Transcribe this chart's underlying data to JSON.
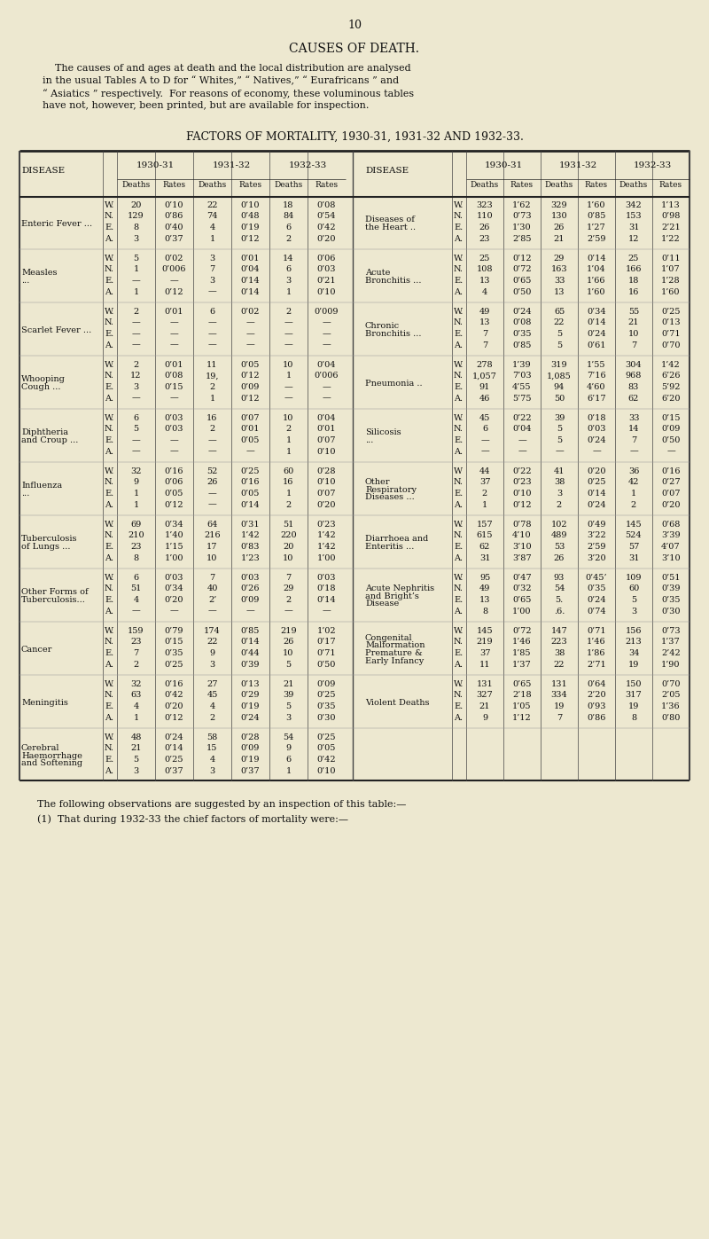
{
  "page_number": "10",
  "title": "CAUSES OF DEATH.",
  "intro_text": [
    "    The causes of and ages at death and the local distribution are analysed",
    "in the usual Tables A to D for “ Whites,” “ Natives,” “ Eurafricans ” and",
    "“ Asiatics ” respectively.  For reasons of economy, these voluminous tables",
    "have not, however, been printed, but are available for inspection."
  ],
  "table_title": "FACTORS OF MORTALITY, 1930-31, 1931-32 AND 1932-33.",
  "bg_color": "#ede8d0",
  "text_color": "#111111",
  "footer_lines": [
    "The following observations are suggested by an inspection of this table:—",
    "(1)  That during 1932-33 the chief factors of mortality were:—"
  ],
  "diseases_left": [
    {
      "name": "Enteric Fever ...",
      "name_lines": [
        "Enteric Fever ..."
      ],
      "rows": [
        [
          "W.",
          "20",
          "0’10",
          "22",
          "0’10",
          "18",
          "0’08"
        ],
        [
          "N.",
          "129",
          "0’86",
          "74",
          "0’48",
          "84",
          "0’54"
        ],
        [
          "E.",
          "8",
          "0’40",
          "4",
          "0’19",
          "6",
          "0’42"
        ],
        [
          "A.",
          "3",
          "0’37",
          "1",
          "0’12",
          "2",
          "0’20"
        ]
      ]
    },
    {
      "name": "Measles",
      "name_lines": [
        "Measles",
        "..."
      ],
      "rows": [
        [
          "W.",
          "5",
          "0’02",
          "3",
          "0’01",
          "14",
          "0’06"
        ],
        [
          "N.",
          "1",
          "0’006",
          "7",
          "0’04",
          "6",
          "0’03"
        ],
        [
          "E.",
          "—",
          "—",
          "3",
          "0’14",
          "3",
          "0’21"
        ],
        [
          "A.",
          "1",
          "0’12",
          "—",
          "0’14",
          "1",
          "0’10"
        ]
      ]
    },
    {
      "name": "Scarlet Fever ...",
      "name_lines": [
        "Scarlet Fever ..."
      ],
      "rows": [
        [
          "W.",
          "2",
          "0’01",
          "6",
          "0’02",
          "2",
          "0’009"
        ],
        [
          "N.",
          "—",
          "—",
          "—",
          "—",
          "—",
          "—"
        ],
        [
          "E.",
          "—",
          "—",
          "—",
          "—",
          "—",
          "—"
        ],
        [
          "A.",
          "—",
          "—",
          "—",
          "—",
          "—",
          "—"
        ]
      ]
    },
    {
      "name": "Whooping\nCough ...",
      "name_lines": [
        "Whooping",
        "Cough ..."
      ],
      "rows": [
        [
          "W.",
          "2",
          "0’01",
          "11",
          "0’05",
          "10",
          "0’04"
        ],
        [
          "N.",
          "12",
          "0’08",
          "19,",
          "0’12",
          "1",
          "0’006"
        ],
        [
          "E.",
          "3",
          "0’15",
          "2",
          "0’09",
          "—",
          "—"
        ],
        [
          "A.",
          "—",
          "—",
          "1",
          "0’12",
          "—",
          "—"
        ]
      ]
    },
    {
      "name": "Diphtheria\nand Croup ...",
      "name_lines": [
        "Diphtheria",
        "and Croup ..."
      ],
      "rows": [
        [
          "W.",
          "6",
          "0’03",
          "16",
          "0’07",
          "10",
          "0’04"
        ],
        [
          "N.",
          "5",
          "0’03",
          "2",
          "0’01",
          "2",
          "0’01"
        ],
        [
          "E.",
          "—",
          "—",
          "—",
          "0’05",
          "1",
          "0’07"
        ],
        [
          "A.",
          "—",
          "—",
          "—",
          "—",
          "1",
          "0’10"
        ]
      ]
    },
    {
      "name": "Influenza",
      "name_lines": [
        "Influenza",
        "..."
      ],
      "rows": [
        [
          "W.",
          "32",
          "0’16",
          "52",
          "0’25",
          "60",
          "0’28"
        ],
        [
          "N.",
          "9",
          "0’06",
          "26",
          "0’16",
          "16",
          "0’10"
        ],
        [
          "E.",
          "1",
          "0’05",
          "—",
          "0’05",
          "1",
          "0’07"
        ],
        [
          "A.",
          "1",
          "0’12",
          "—",
          "0’14",
          "2",
          "0’20"
        ]
      ]
    },
    {
      "name": "Tuberculosis\nof Lungs ...",
      "name_lines": [
        "Tuberculosis",
        "of Lungs ..."
      ],
      "rows": [
        [
          "W.",
          "69",
          "0’34",
          "64",
          "0’31",
          "51",
          "0’23"
        ],
        [
          "N.",
          "210",
          "1’40",
          "216",
          "1’42",
          "220",
          "1’42"
        ],
        [
          "E.",
          "23",
          "1’15",
          "17",
          "0’83",
          "20",
          "1’42"
        ],
        [
          "A.",
          "8",
          "1’00",
          "10",
          "1’23",
          "10",
          "1’00"
        ]
      ]
    },
    {
      "name": "Other Forms of\nTuberculosis...",
      "name_lines": [
        "Other Forms of",
        "Tuberculosis..."
      ],
      "rows": [
        [
          "W.",
          "6",
          "0’03",
          "7",
          "0’03",
          "7",
          "0’03"
        ],
        [
          "N.",
          "51",
          "0’34",
          "40",
          "0’26",
          "29",
          "0’18"
        ],
        [
          "E.",
          "4",
          "0’20",
          "2’",
          "0’09",
          "2",
          "0’14"
        ],
        [
          "A.",
          "—",
          "—",
          "—",
          "—",
          "—",
          "—"
        ]
      ]
    },
    {
      "name": "Cancer",
      "name_lines": [
        "Cancer"
      ],
      "rows": [
        [
          "W.",
          "159",
          "0’79",
          "174",
          "0’85",
          "219",
          "1’02"
        ],
        [
          "N.",
          "23",
          "0’15",
          "22",
          "0’14",
          "26",
          "0’17"
        ],
        [
          "E.",
          "7",
          "0’35",
          "9",
          "0’44",
          "10",
          "0’71"
        ],
        [
          "A.",
          "2",
          "0’25",
          "3",
          "0’39",
          "5",
          "0’50"
        ]
      ]
    },
    {
      "name": "Meningitis",
      "name_lines": [
        "Meningitis"
      ],
      "rows": [
        [
          "W.",
          "32",
          "0’16",
          "27",
          "0’13",
          "21",
          "0’09"
        ],
        [
          "N.",
          "63",
          "0’42",
          "45",
          "0’29",
          "39",
          "0’25"
        ],
        [
          "E.",
          "4",
          "0’20",
          "4",
          "0’19",
          "5",
          "0’35"
        ],
        [
          "A.",
          "1",
          "0’12",
          "2",
          "0’24",
          "3",
          "0’30"
        ]
      ]
    },
    {
      "name": "Cerebral\nHaemorrhage\nand Softening",
      "name_lines": [
        "Cerebral",
        "Haemorrhage",
        "and Softening"
      ],
      "rows": [
        [
          "W.",
          "48",
          "0’24",
          "58",
          "0’28",
          "54",
          "0’25"
        ],
        [
          "N.",
          "21",
          "0’14",
          "15",
          "0’09",
          "9",
          "0’05"
        ],
        [
          "E.",
          "5",
          "0’25",
          "4",
          "0’19",
          "6",
          "0’42"
        ],
        [
          "A.",
          "3",
          "0’37",
          "3",
          "0’37",
          "1",
          "0’10"
        ]
      ]
    }
  ],
  "diseases_right": [
    {
      "name": "Diseases of\nthe Heart ..",
      "name_lines": [
        "Diseases of",
        "the Heart .."
      ],
      "rows": [
        [
          "W.",
          "323",
          "1’62",
          "329",
          "1’60",
          "342",
          "1’13"
        ],
        [
          "N.",
          "110",
          "0’73",
          "130",
          "0’85",
          "153",
          "0’98"
        ],
        [
          "E.",
          "26",
          "1’30",
          "26",
          "1’27",
          "31",
          "2’21"
        ],
        [
          "A.",
          "23",
          "2’85",
          "21",
          "2’59",
          "12",
          "1’22"
        ]
      ]
    },
    {
      "name": "Acute\nBronchitis ...",
      "name_lines": [
        "Acute",
        "Bronchitis ..."
      ],
      "rows": [
        [
          "W.",
          "25",
          "0’12",
          "29",
          "0’14",
          "25",
          "0’11"
        ],
        [
          "N.",
          "108",
          "0’72",
          "163",
          "1’04",
          "166",
          "1’07"
        ],
        [
          "E.",
          "13",
          "0’65",
          "33",
          "1’66",
          "18",
          "1’28"
        ],
        [
          "A.",
          "4",
          "0’50",
          "13",
          "1’60",
          "16",
          "1’60"
        ]
      ]
    },
    {
      "name": "Chronic\nBronchitis ...",
      "name_lines": [
        "Chronic",
        "Bronchitis ..."
      ],
      "rows": [
        [
          "W.",
          "49",
          "0’24",
          "65",
          "0’34",
          "55",
          "0’25"
        ],
        [
          "N.",
          "13",
          "0’08",
          "22",
          "0’14",
          "21",
          "0’13"
        ],
        [
          "E.",
          "7",
          "0’35",
          "5",
          "0’24",
          "10",
          "0’71"
        ],
        [
          "A.",
          "7",
          "0’85",
          "5",
          "0’61",
          "7",
          "0’70"
        ]
      ]
    },
    {
      "name": "Pneumonia ..",
      "name_lines": [
        "Pneumonia .."
      ],
      "rows": [
        [
          "W.",
          "278",
          "1’39",
          "319",
          "1’55",
          "304",
          "1’42"
        ],
        [
          "N.",
          "1,057",
          "7’03",
          "1,085",
          "7’16",
          "968",
          "6’26"
        ],
        [
          "E.",
          "91",
          "4’55",
          "94",
          "4’60",
          "83",
          "5’92"
        ],
        [
          "A.",
          "46",
          "5’75",
          "50",
          "6’17",
          "62",
          "6’20"
        ]
      ]
    },
    {
      "name": "Silicosis",
      "name_lines": [
        "Silicosis",
        "..."
      ],
      "rows": [
        [
          "W.",
          "45",
          "0’22",
          "39",
          "0’18",
          "33",
          "0’15"
        ],
        [
          "N.",
          "6",
          "0’04",
          "5",
          "0’03",
          "14",
          "0’09"
        ],
        [
          "E.",
          "—",
          "—",
          "5",
          "0’24",
          "7",
          "0’50"
        ],
        [
          "A.",
          "—",
          "—",
          "—",
          "—",
          "—",
          "—"
        ]
      ]
    },
    {
      "name": "Other\nRespiratory\nDiseases ...",
      "name_lines": [
        "Other",
        "Respiratory",
        "Diseases ..."
      ],
      "rows": [
        [
          "W",
          "44",
          "0’22",
          "41",
          "0’20",
          "36",
          "0’16"
        ],
        [
          "N.",
          "37",
          "0’23",
          "38",
          "0’25",
          "42",
          "0’27"
        ],
        [
          "E.",
          "2",
          "0’10",
          "3",
          "0’14",
          "1",
          "0’07"
        ],
        [
          "A.",
          "1",
          "0’12",
          "2",
          "0’24",
          "2",
          "0’20"
        ]
      ]
    },
    {
      "name": "Diarrhoea and\nEnteritis ...",
      "name_lines": [
        "Diarrhoea and",
        "Enteritis ..."
      ],
      "rows": [
        [
          "W.",
          "157",
          "0’78",
          "102",
          "0’49",
          "145",
          "0’68"
        ],
        [
          "N.",
          "615",
          "4’10",
          "489",
          "3’22",
          "524",
          "3’39"
        ],
        [
          "E.",
          "62",
          "3’10",
          "53",
          "2’59",
          "57",
          "4’07"
        ],
        [
          "A.",
          "31",
          "3’87",
          "26",
          "3’20",
          "31",
          "3’10"
        ]
      ]
    },
    {
      "name": "Acute Nephritis\nand Bright's\nDisease",
      "name_lines": [
        "Acute Nephritis",
        "and Bright’s",
        "Disease"
      ],
      "rows": [
        [
          "W.",
          "95",
          "0’47",
          "93",
          "0’45’",
          "109",
          "0’51"
        ],
        [
          "N.",
          "49",
          "0’32",
          "54",
          "0’35",
          "60",
          "0’39"
        ],
        [
          "E.",
          "13",
          "0’65",
          "5.",
          "0’24",
          "5",
          "0’35"
        ],
        [
          "A.",
          "8",
          "1’00",
          ".6.",
          "0’74",
          "3",
          "0’30"
        ]
      ]
    },
    {
      "name": "Congenital\nMalformation\nPremature &\nEarly Infancy",
      "name_lines": [
        "Congenital",
        "Malformation",
        "Premature &",
        "Early Infancy"
      ],
      "rows": [
        [
          "W.",
          "145",
          "0’72",
          "147",
          "0’71",
          "156",
          "0’73"
        ],
        [
          "N.",
          "219",
          "1’46",
          "223",
          "1’46",
          "213",
          "1’37"
        ],
        [
          "E.",
          "37",
          "1’85",
          "38",
          "1’86",
          "34",
          "2’42"
        ],
        [
          "A.",
          "11",
          "1’37",
          "22",
          "2’71",
          "19",
          "1’90"
        ]
      ]
    },
    {
      "name": "Violent Deaths",
      "name_lines": [
        "Violent Deaths"
      ],
      "rows": [
        [
          "W.",
          "131",
          "0’65",
          "131",
          "0’64",
          "150",
          "0’70"
        ],
        [
          "N.",
          "327",
          "2’18",
          "334",
          "2’20",
          "317",
          "2’05"
        ],
        [
          "E.",
          "21",
          "1’05",
          "19",
          "0’93",
          "19",
          "1’36"
        ],
        [
          "A.",
          "9",
          "1’12",
          "7",
          "0’86",
          "8",
          "0’80"
        ]
      ]
    }
  ]
}
